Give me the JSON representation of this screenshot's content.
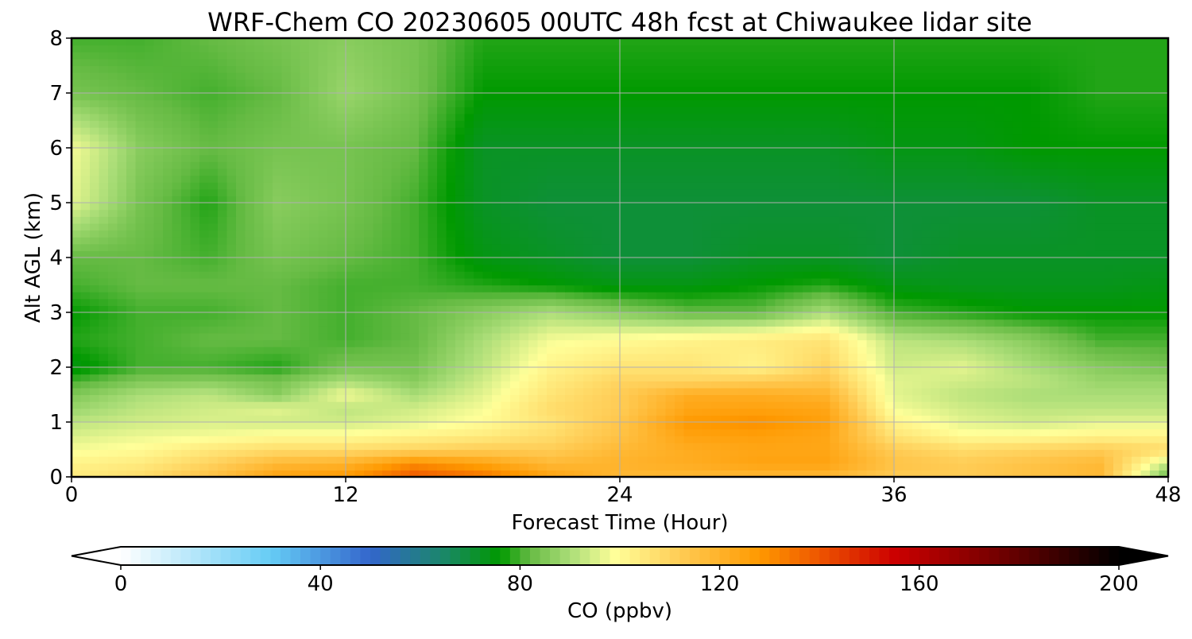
{
  "chart_data": {
    "type": "heatmap",
    "title": "WRF-Chem CO  20230605 00UTC 48h fcst at Chiwaukee lidar site",
    "xlabel": "Forecast Time (Hour)",
    "ylabel": "Alt AGL (km)",
    "xlim": [
      0,
      48
    ],
    "ylim": [
      0,
      8
    ],
    "xticks": [
      0,
      12,
      24,
      36,
      48
    ],
    "yticks": [
      0,
      1,
      2,
      3,
      4,
      5,
      6,
      7,
      8
    ],
    "grid": true,
    "x": [
      0,
      3,
      6,
      9,
      12,
      15,
      18,
      21,
      24,
      27,
      30,
      33,
      36,
      39,
      42,
      45,
      48
    ],
    "y": [
      0,
      0.25,
      0.5,
      0.75,
      1,
      1.25,
      1.5,
      1.75,
      2,
      2.5,
      3,
      3.5,
      4,
      5,
      6,
      7,
      8
    ],
    "z": [
      [
        104,
        108,
        115,
        125,
        128,
        140,
        135,
        125,
        118,
        118,
        118,
        118,
        112,
        112,
        115,
        118,
        82
      ],
      [
        102,
        104,
        110,
        118,
        120,
        130,
        125,
        118,
        120,
        122,
        125,
        125,
        115,
        112,
        115,
        118,
        92
      ],
      [
        98,
        100,
        105,
        108,
        108,
        110,
        112,
        112,
        118,
        122,
        124,
        124,
        112,
        108,
        110,
        112,
        108
      ],
      [
        95,
        97,
        98,
        100,
        100,
        102,
        104,
        108,
        115,
        125,
        126,
        124,
        106,
        100,
        100,
        102,
        102
      ],
      [
        92,
        94,
        95,
        94,
        94,
        96,
        100,
        106,
        114,
        128,
        130,
        126,
        102,
        96,
        94,
        96,
        96
      ],
      [
        88,
        92,
        94,
        96,
        92,
        94,
        98,
        108,
        112,
        124,
        125,
        124,
        98,
        94,
        92,
        92,
        92
      ],
      [
        85,
        90,
        92,
        86,
        98,
        90,
        96,
        106,
        112,
        122,
        122,
        120,
        96,
        92,
        90,
        90,
        90
      ],
      [
        80,
        85,
        86,
        84,
        90,
        86,
        94,
        104,
        110,
        110,
        112,
        114,
        96,
        94,
        92,
        88,
        88
      ],
      [
        74,
        80,
        80,
        78,
        84,
        84,
        92,
        102,
        106,
        106,
        102,
        110,
        94,
        96,
        90,
        86,
        84
      ],
      [
        78,
        80,
        82,
        82,
        80,
        82,
        90,
        98,
        100,
        102,
        104,
        106,
        92,
        90,
        86,
        80,
        80
      ],
      [
        76,
        80,
        80,
        82,
        80,
        82,
        86,
        90,
        86,
        82,
        82,
        90,
        80,
        78,
        76,
        76,
        76
      ],
      [
        80,
        82,
        82,
        82,
        80,
        80,
        78,
        76,
        74,
        74,
        76,
        78,
        74,
        73,
        73,
        73,
        74
      ],
      [
        82,
        82,
        80,
        84,
        82,
        80,
        74,
        72,
        70,
        70,
        72,
        72,
        70,
        72,
        72,
        72,
        72
      ],
      [
        96,
        84,
        78,
        86,
        84,
        80,
        72,
        70,
        70,
        70,
        70,
        70,
        70,
        70,
        70,
        72,
        72
      ],
      [
        98,
        86,
        82,
        84,
        84,
        82,
        72,
        72,
        72,
        72,
        72,
        72,
        74,
        74,
        76,
        76,
        76
      ],
      [
        84,
        82,
        80,
        82,
        88,
        84,
        76,
        76,
        76,
        76,
        76,
        76,
        76,
        76,
        76,
        78,
        78
      ],
      [
        80,
        80,
        82,
        84,
        86,
        84,
        78,
        78,
        78,
        78,
        78,
        78,
        78,
        78,
        78,
        78,
        78
      ]
    ],
    "colorbar": {
      "label": "CO  (ppbv)",
      "min": 0,
      "max": 200,
      "ticks": [
        0,
        40,
        80,
        120,
        160,
        200
      ],
      "extend": "both",
      "orientation": "horizontal",
      "colors": [
        {
          "v": 0,
          "c": "#ffffff"
        },
        {
          "v": 30,
          "c": "#66ccf5"
        },
        {
          "v": 50,
          "c": "#3366cc"
        },
        {
          "v": 65,
          "c": "#1a8866"
        },
        {
          "v": 76,
          "c": "#009900"
        },
        {
          "v": 82,
          "c": "#66bb44"
        },
        {
          "v": 90,
          "c": "#aadd77"
        },
        {
          "v": 99,
          "c": "#ffff99"
        },
        {
          "v": 112,
          "c": "#ffcc55"
        },
        {
          "v": 128,
          "c": "#ff9900"
        },
        {
          "v": 140,
          "c": "#ee5500"
        },
        {
          "v": 155,
          "c": "#cc0000"
        },
        {
          "v": 175,
          "c": "#770000"
        },
        {
          "v": 200,
          "c": "#000000"
        }
      ]
    }
  }
}
